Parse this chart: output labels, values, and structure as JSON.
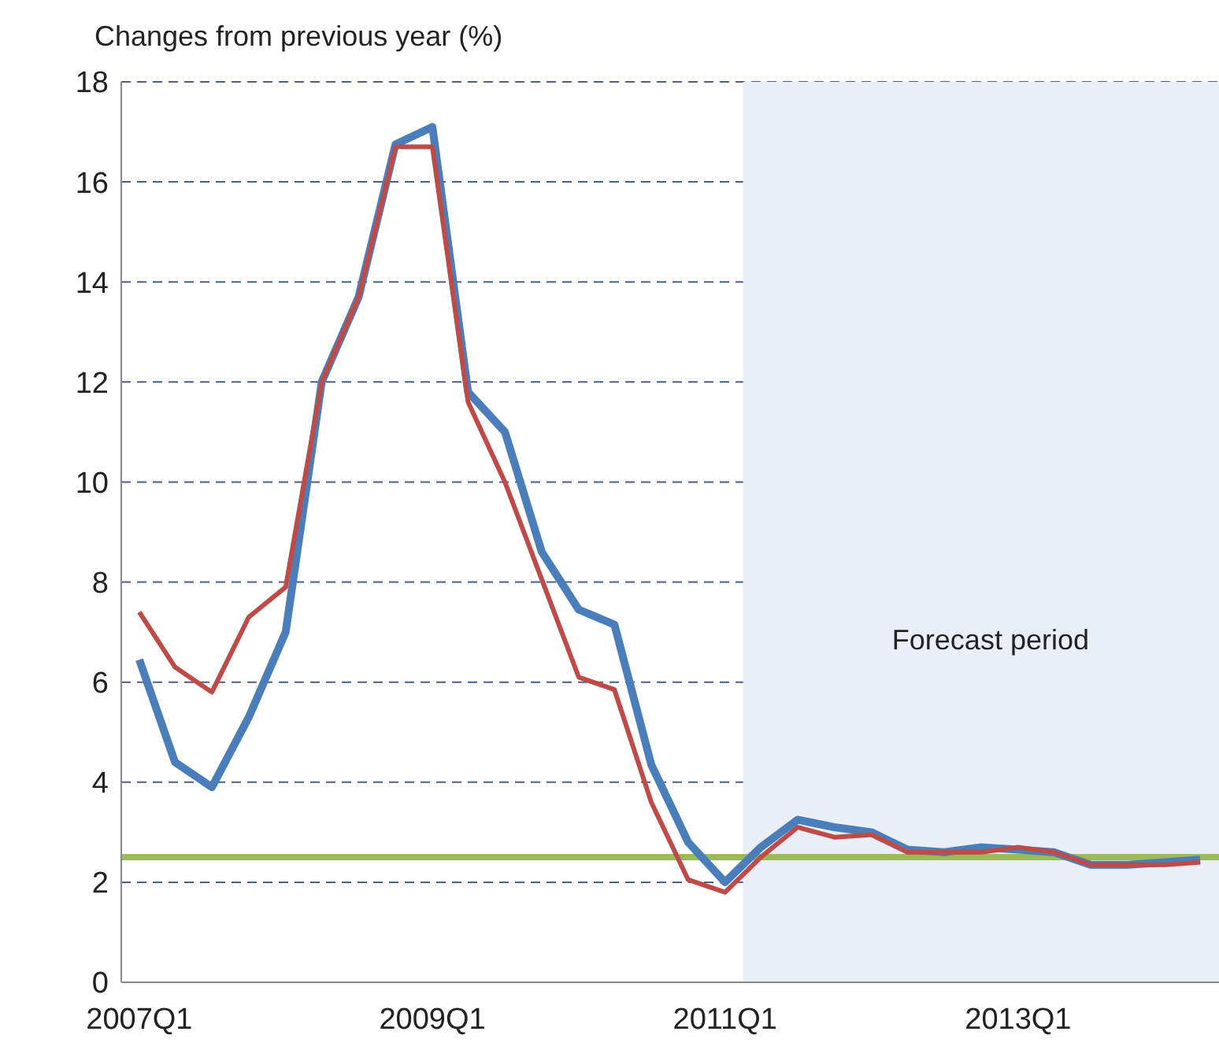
{
  "chart_data": {
    "type": "line",
    "ylabel": "Changes from previous year (%)",
    "x": [
      "2007-02-15",
      "2007-05-15",
      "2007-08-15",
      "2007-11-15",
      "2008-02-15",
      "2008-05-15",
      "2008-08-15",
      "2008-11-15",
      "2009-02-15",
      "2009-05-15",
      "2009-08-15",
      "2009-11-15",
      "2010-02-15",
      "2010-05-15",
      "2010-08-15",
      "2010-11-15",
      "2011-02-15",
      "2011-05-15",
      "2011-08-15",
      "2011-11-15",
      "2012-02-15",
      "2012-05-15",
      "2012-08-15",
      "2012-11-15",
      "2013-02-15",
      "2013-05-15",
      "2013-08-15",
      "2013-11-15",
      "2014-02-15",
      "2014-05-15"
    ],
    "series": [
      {
        "color": "#4a7ebb",
        "values": [
          6.45,
          4.4,
          3.9,
          5.3,
          7.0,
          12.0,
          13.7,
          16.75,
          17.1,
          11.8,
          11.0,
          8.6,
          7.45,
          7.15,
          4.35,
          2.8,
          2.0,
          2.7,
          3.25,
          3.1,
          3.0,
          2.65,
          2.6,
          2.7,
          2.65,
          2.6,
          2.35,
          2.35,
          2.4,
          2.45
        ]
      },
      {
        "color": "#be4b48",
        "values": [
          7.4,
          6.3,
          5.8,
          7.3,
          7.9,
          12.0,
          13.7,
          16.7,
          16.7,
          11.6,
          10.0,
          8.05,
          6.1,
          5.85,
          3.6,
          2.05,
          1.8,
          2.5,
          3.1,
          2.9,
          2.95,
          2.6,
          2.6,
          2.6,
          2.7,
          2.6,
          2.35,
          2.35,
          2.35,
          2.4
        ]
      }
    ],
    "xlim": [
      "2007-01-01",
      "2014-07-01"
    ],
    "xticks": [
      {
        "value": "2007-02-15",
        "label": "2007Q1"
      },
      {
        "value": "2009-02-15",
        "label": "2009Q1"
      },
      {
        "value": "2011-02-15",
        "label": "2011Q1"
      },
      {
        "value": "2013-02-15",
        "label": "2013Q1"
      }
    ],
    "ylim": [
      0,
      18
    ],
    "yticks": [
      0,
      2,
      4,
      6,
      8,
      10,
      12,
      14,
      16,
      18
    ],
    "grid": "y",
    "legend": false,
    "marker": "none",
    "ref_lines": [
      {
        "axis": "y",
        "value": 2.5,
        "color": "#9bbb59"
      }
    ],
    "bands": [
      {
        "axis": "x",
        "from": "2011-04-01",
        "to": "2014-07-01",
        "label": "Forecast period",
        "color": "#e9eef7"
      }
    ]
  }
}
